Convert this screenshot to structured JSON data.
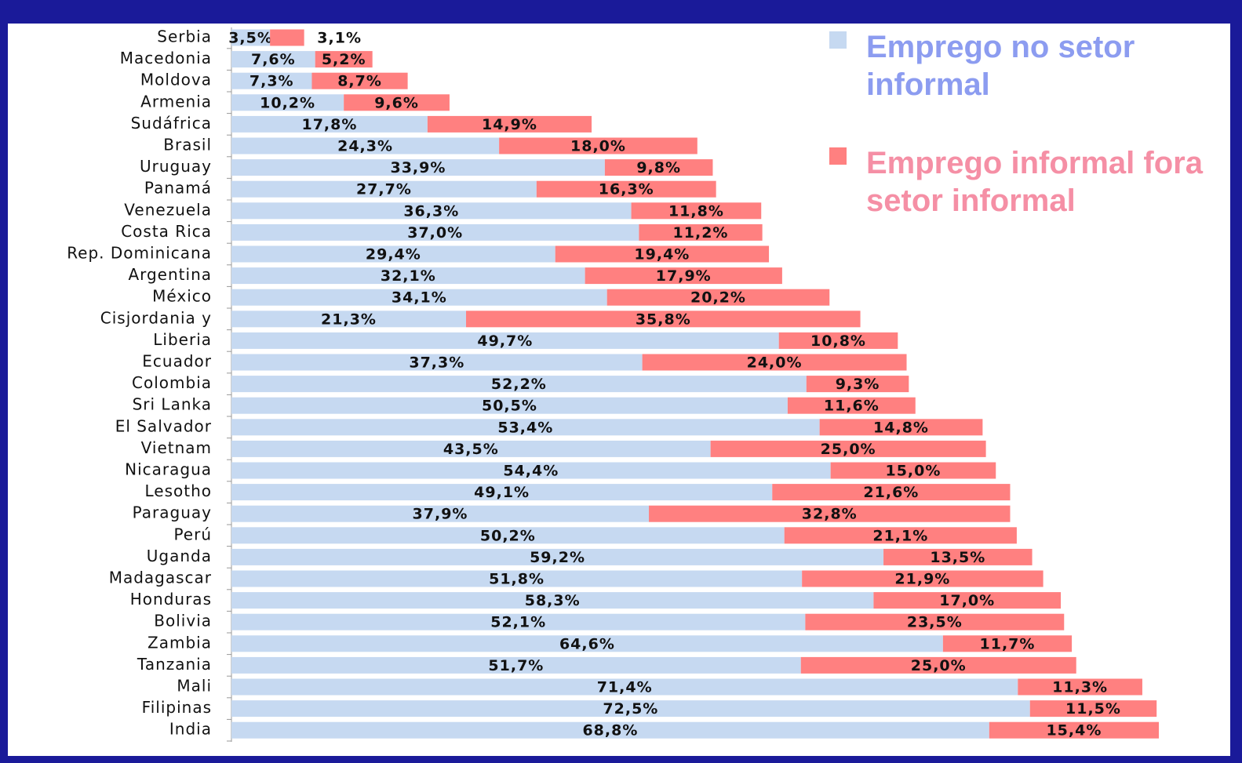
{
  "chart_data": {
    "type": "stacked-barh",
    "categories": [
      "Serbia",
      "Macedonia",
      "Moldova",
      "Armenia",
      "Sudáfrica",
      "Brasil",
      "Uruguay",
      "Panamá",
      "Venezuela",
      "Costa Rica",
      "Rep. Dominicana",
      "Argentina",
      "México",
      "Cisjordania y",
      "Liberia",
      "Ecuador",
      "Colombia",
      "Sri Lanka",
      "El Salvador",
      "Vietnam",
      "Nicaragua",
      "Lesotho",
      "Paraguay",
      "Perú",
      "Uganda",
      "Madagascar",
      "Honduras",
      "Bolivia",
      "Zambia",
      "Tanzania",
      "Mali",
      "Filipinas",
      "India"
    ],
    "series": [
      {
        "name": "Emprego no setor informal",
        "color": "#c6d9f1",
        "text_color": "#8c9cf0",
        "values": [
          3.5,
          7.6,
          7.3,
          10.2,
          17.8,
          24.3,
          33.9,
          27.7,
          36.3,
          37.0,
          29.4,
          32.1,
          34.1,
          21.3,
          49.7,
          37.3,
          52.2,
          50.5,
          53.4,
          43.5,
          54.4,
          49.1,
          37.9,
          50.2,
          59.2,
          51.8,
          58.3,
          52.1,
          64.6,
          51.7,
          71.4,
          72.5,
          68.8
        ],
        "value_labels": [
          "3,5%",
          "7,6%",
          "7,3%",
          "10,2%",
          "17,8%",
          "24,3%",
          "33,9%",
          "27,7%",
          "36,3%",
          "37,0%",
          "29,4%",
          "32,1%",
          "34,1%",
          "21,3%",
          "49,7%",
          "37,3%",
          "52,2%",
          "50,5%",
          "53,4%",
          "43,5%",
          "54,4%",
          "49,1%",
          "37,9%",
          "50,2%",
          "59,2%",
          "51,8%",
          "58,3%",
          "52,1%",
          "64,6%",
          "51,7%",
          "71,4%",
          "72,5%",
          "68,8%"
        ]
      },
      {
        "name": "Emprego informal fora setor informal",
        "color": "#ff8080",
        "text_color": "#f58fa5",
        "values": [
          3.1,
          5.2,
          8.7,
          9.6,
          14.9,
          18.0,
          9.8,
          16.3,
          11.8,
          11.2,
          19.4,
          17.9,
          20.2,
          35.8,
          10.8,
          24.0,
          9.3,
          11.6,
          14.8,
          25.0,
          15.0,
          21.6,
          32.8,
          21.1,
          13.5,
          21.9,
          17.0,
          23.5,
          11.7,
          25.0,
          11.3,
          11.5,
          15.4
        ],
        "value_labels": [
          "3,1%",
          "5,2%",
          "8,7%",
          "9,6%",
          "14,9%",
          "18,0%",
          "9,8%",
          "16,3%",
          "11,8%",
          "11,2%",
          "19,4%",
          "17,9%",
          "20,2%",
          "35,8%",
          "10,8%",
          "24,0%",
          "9,3%",
          "11,6%",
          "14,8%",
          "25,0%",
          "15,0%",
          "21,6%",
          "32,8%",
          "21,1%",
          "13,5%",
          "21,9%",
          "17,0%",
          "23,5%",
          "11,7%",
          "25,0%",
          "11,3%",
          "11,5%",
          "15,4%"
        ]
      }
    ],
    "legend": "top-right"
  }
}
